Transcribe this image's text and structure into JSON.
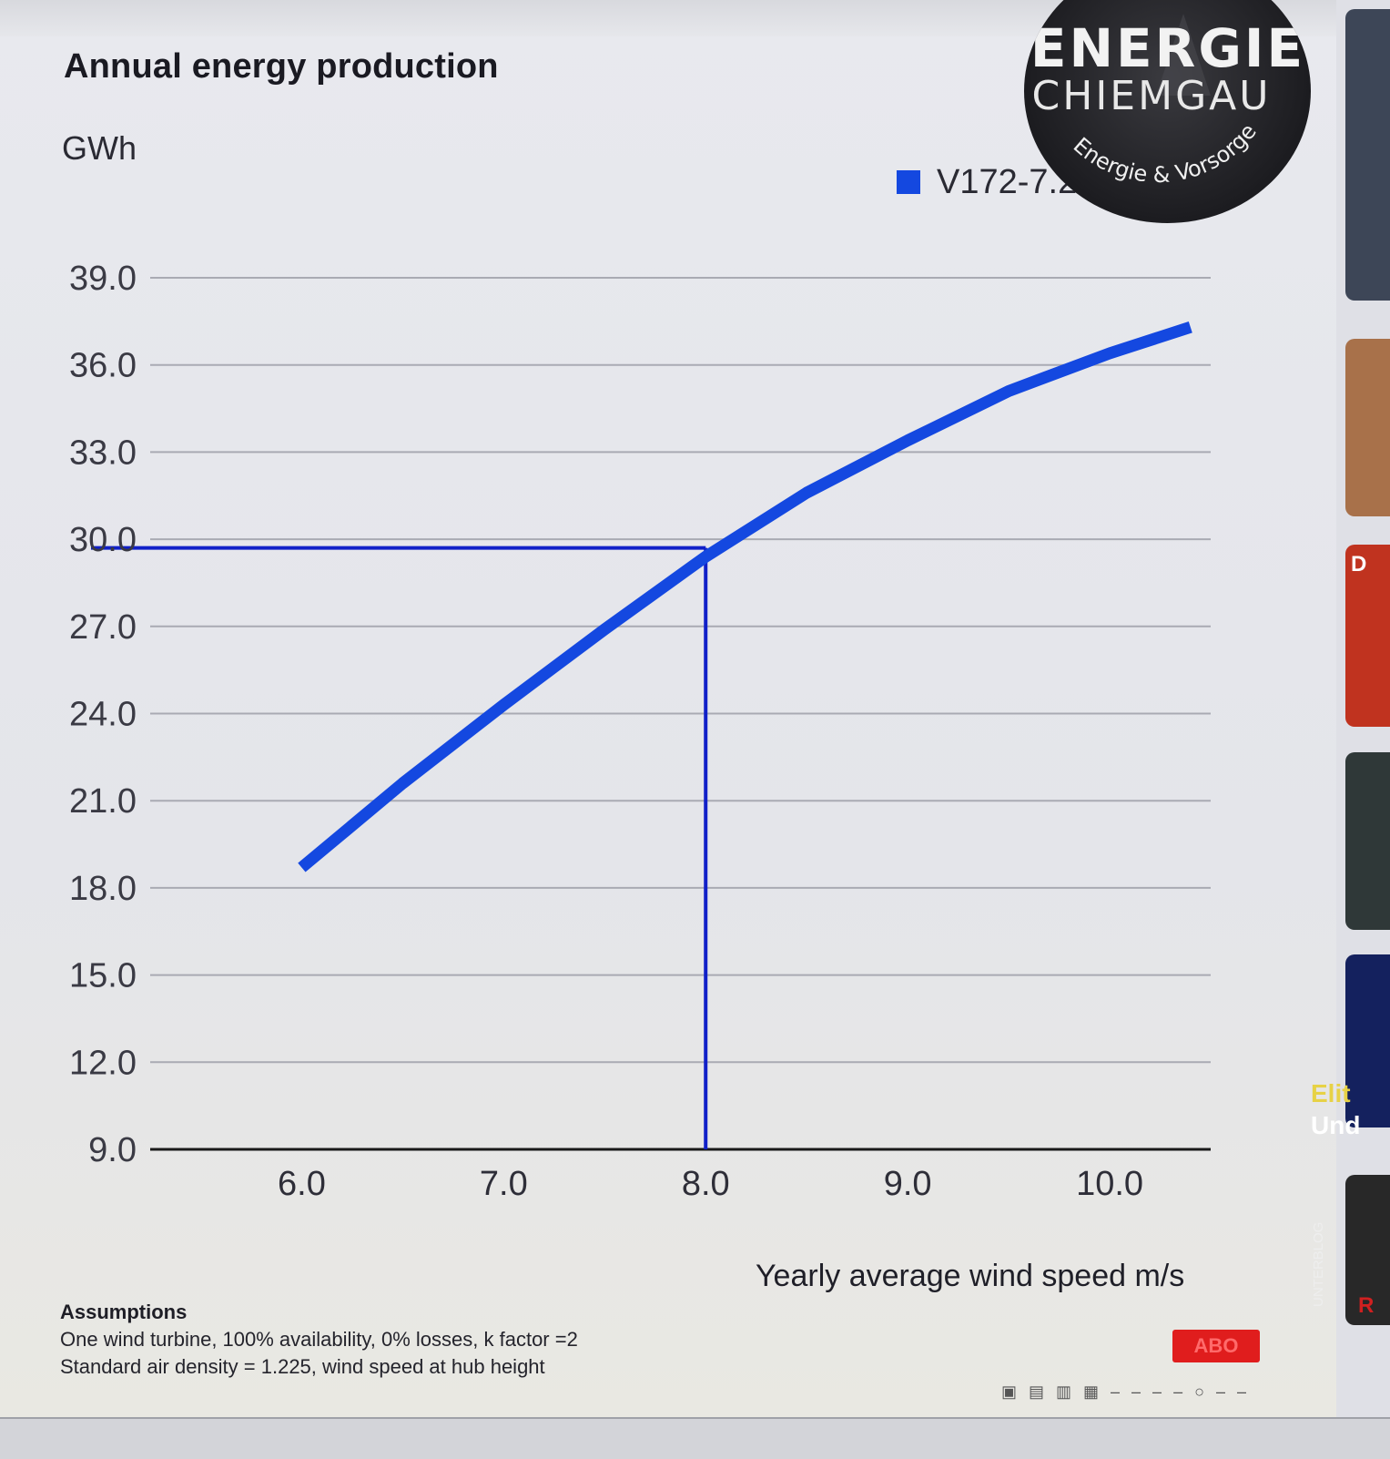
{
  "chart_data": {
    "type": "line",
    "title": "Annual energy production",
    "y_unit": "GWh",
    "xlabel": "Yearly average wind speed m/s",
    "ylabel": "",
    "xlim": [
      5.25,
      10.5
    ],
    "ylim": [
      9.0,
      39.0
    ],
    "x_ticks": [
      "6.0",
      "7.0",
      "8.0",
      "9.0",
      "10.0"
    ],
    "y_ticks": [
      "39.0",
      "36.0",
      "33.0",
      "30.0",
      "27.0",
      "24.0",
      "21.0",
      "18.0",
      "15.0",
      "12.0",
      "9.0"
    ],
    "grid": true,
    "legend_position": "top-right",
    "series": [
      {
        "name": "V172-7.2",
        "color": "#1448e0",
        "x": [
          6.0,
          6.5,
          7.0,
          7.25,
          7.5,
          8.0,
          8.5,
          9.0,
          9.5,
          10.0,
          10.4
        ],
        "y": [
          18.7,
          21.6,
          24.3,
          25.6,
          26.9,
          29.4,
          31.6,
          33.4,
          35.1,
          36.4,
          37.3
        ]
      }
    ],
    "reference_lines": {
      "x": 8.0,
      "y": 29.7,
      "color": "#1020c8"
    }
  },
  "assumptions": {
    "title": "Assumptions",
    "line1": "One wind turbine, 100% availability, 0% losses, k factor =2",
    "line2": "Standard air density = 1.225, wind speed at hub height"
  },
  "logo": {
    "line1": "ENERGIE",
    "line2": "CHIEMGAU",
    "tagline": "Energie & Vorsorge"
  },
  "badge": {
    "label": "ABO"
  },
  "sidebar": {
    "thumb_text_1": "Elit",
    "thumb_text_2": "Und",
    "thumb_text_3": "UNTERBLOG",
    "thumb_text_4": "R",
    "thumb_text_5": "D"
  },
  "colors": {
    "line": "#1448e0",
    "grid": "#a9aab3",
    "axis": "#1a1a1a",
    "badge": "#e01d1d"
  }
}
